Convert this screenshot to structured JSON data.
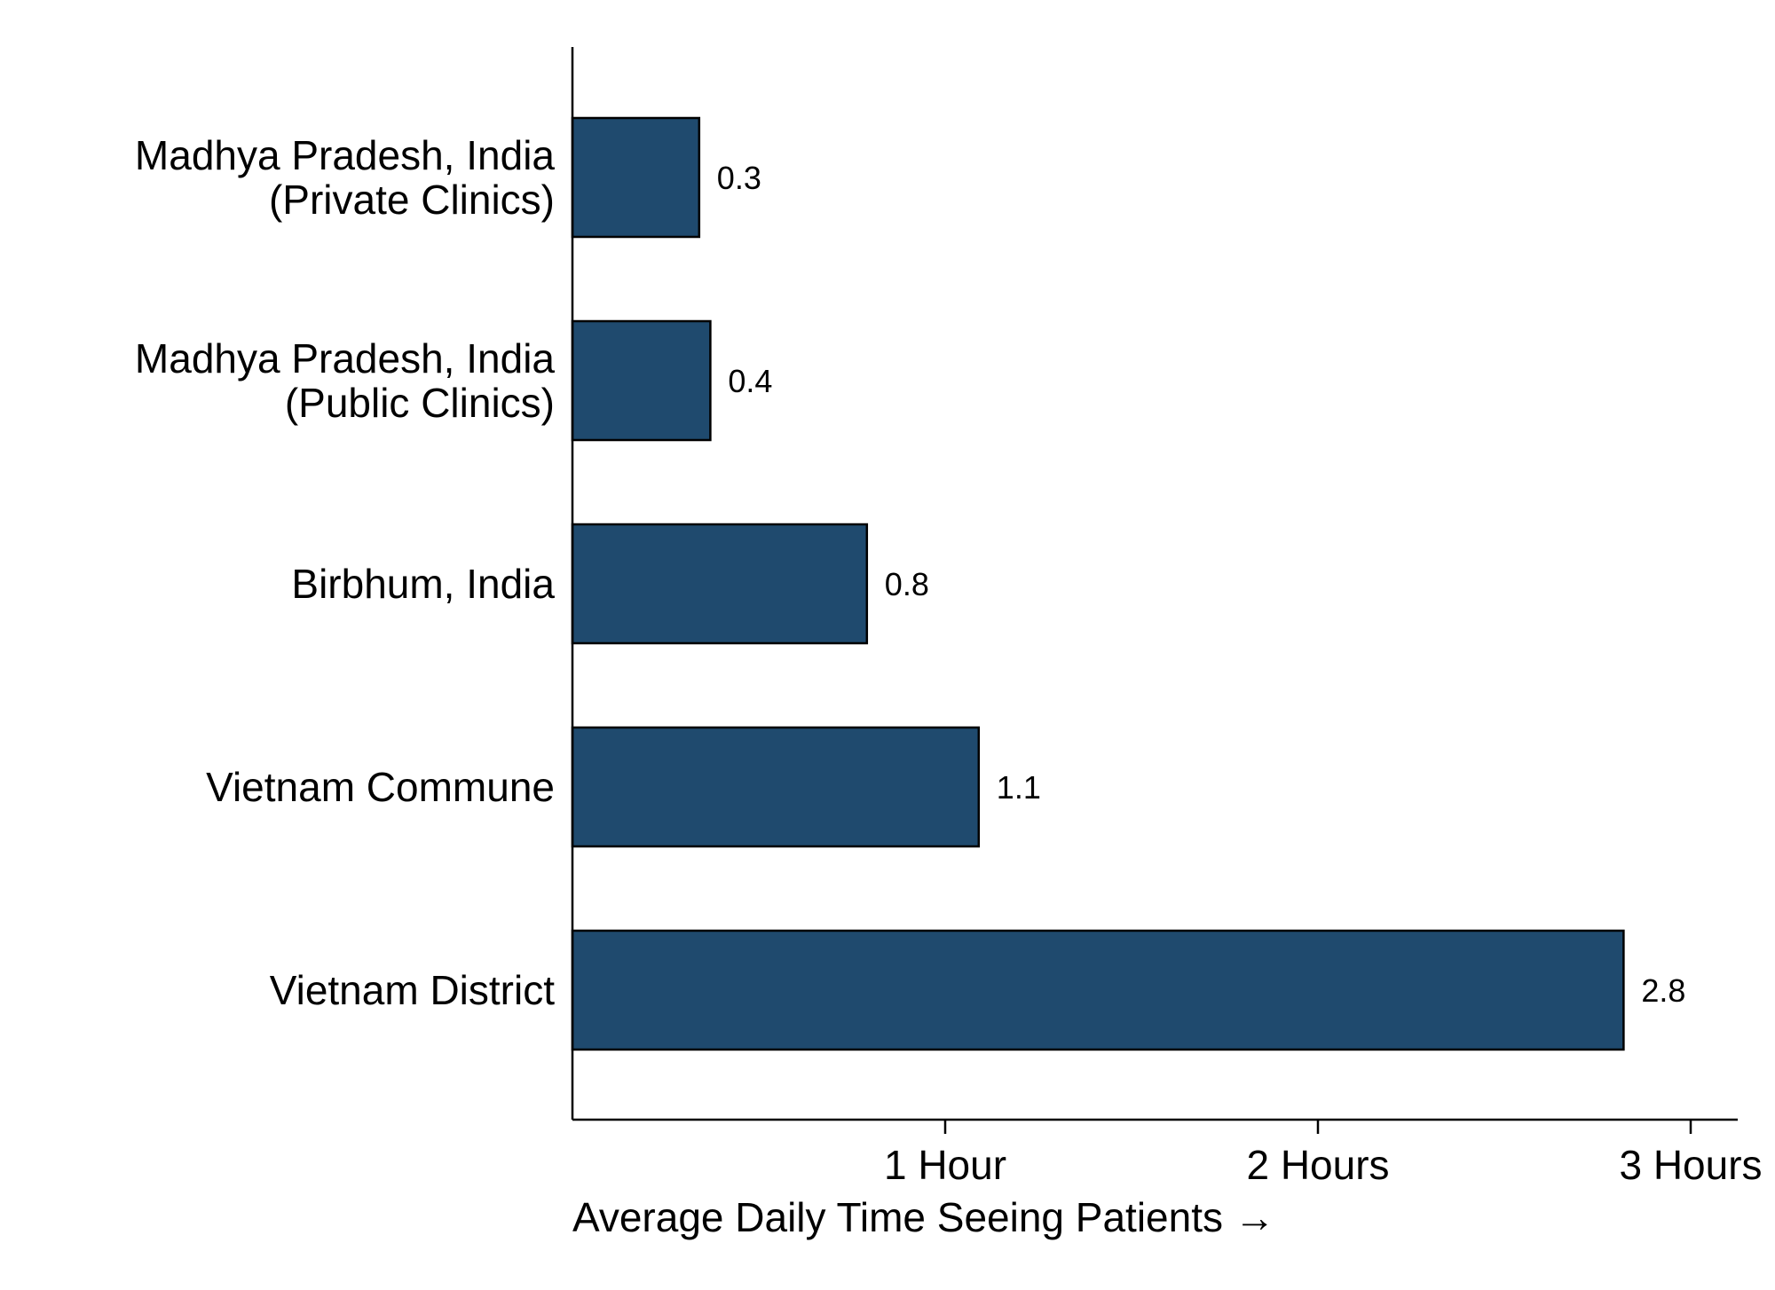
{
  "chart_data": {
    "type": "bar",
    "orientation": "horizontal",
    "categories": [
      "Madhya Pradesh, India (Private Clinics)",
      "Madhya Pradesh, India (Public Clinics)",
      "Birbhum, India",
      "Vietnam Commune",
      "Vietnam District"
    ],
    "category_lines": [
      [
        "Madhya Pradesh, India",
        "(Private Clinics)"
      ],
      [
        "Madhya Pradesh, India",
        "(Public Clinics)"
      ],
      [
        "Birbhum, India"
      ],
      [
        "Vietnam Commune"
      ],
      [
        "Vietnam District"
      ]
    ],
    "values": [
      0.34,
      0.37,
      0.79,
      1.09,
      2.82
    ],
    "value_labels": [
      "0.3",
      "0.4",
      "0.8",
      "1.1",
      "2.8"
    ],
    "title": "",
    "xlabel": "Average Daily Time Seeing Patients →",
    "ylabel": "",
    "xlim": [
      0,
      3.12
    ],
    "xticks": [
      1,
      2,
      3
    ],
    "xtick_labels": [
      "1 Hour",
      "2 Hours",
      "3 Hours"
    ],
    "grid": false,
    "legend": "none",
    "bar_color": "#1f4a6e",
    "bar_edge_color": "#000000"
  }
}
